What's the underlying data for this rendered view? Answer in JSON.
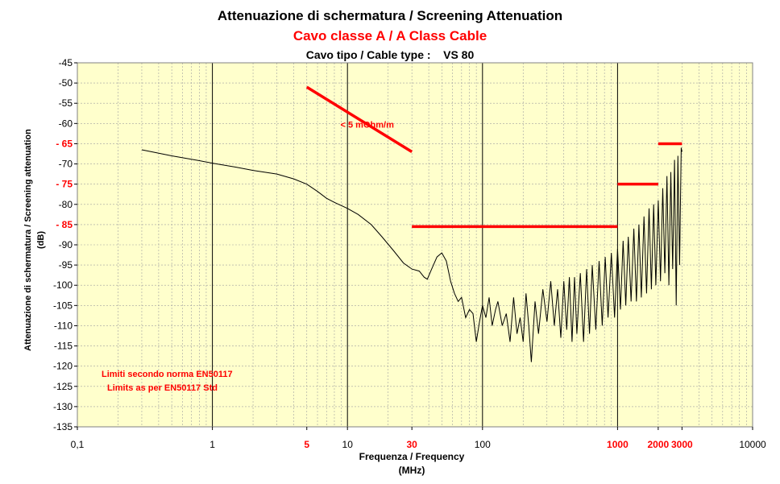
{
  "title": "Attenuazione di schermatura / Screening Attenuation",
  "subtitle": "Cavo classe A / A Class Cable",
  "cable_type_label": "Cavo tipo / Cable type :",
  "cable_type_value": "VS 80",
  "colors": {
    "plot_bg": "#ffffcc",
    "limit": "#ff0000",
    "series": "#000000",
    "grid": "#808080"
  },
  "chart_data": {
    "type": "line",
    "x_scale": "log",
    "xlim": [
      0.1,
      10000
    ],
    "ylim": [
      -135,
      -45
    ],
    "xlabel_line1": "Frequenza / Frequency",
    "xlabel_line2": "(MHz)",
    "ylabel_line1": "Attenuazione di schermatura / Screening attenuation",
    "ylabel_line2": "(dB)",
    "x_ticks": [
      {
        "value": 0.1,
        "label": "0,1",
        "highlight": false
      },
      {
        "value": 1,
        "label": "1",
        "highlight": false
      },
      {
        "value": 5,
        "label": "5",
        "highlight": true
      },
      {
        "value": 10,
        "label": "10",
        "highlight": false
      },
      {
        "value": 30,
        "label": "30",
        "highlight": true
      },
      {
        "value": 100,
        "label": "100",
        "highlight": false
      },
      {
        "value": 1000,
        "label": "1000",
        "highlight": true
      },
      {
        "value": 2000,
        "label": "2000",
        "highlight": true
      },
      {
        "value": 3000,
        "label": "3000",
        "highlight": true
      },
      {
        "value": 10000,
        "label": "10000",
        "highlight": false
      }
    ],
    "y_ticks": [
      {
        "value": -45,
        "label": "-45",
        "highlight": false
      },
      {
        "value": -50,
        "label": "-50",
        "highlight": false
      },
      {
        "value": -55,
        "label": "-55",
        "highlight": false
      },
      {
        "value": -60,
        "label": "-60",
        "highlight": false
      },
      {
        "value": -65,
        "label": "- 65",
        "highlight": true
      },
      {
        "value": -70,
        "label": "-70",
        "highlight": false
      },
      {
        "value": -75,
        "label": "- 75",
        "highlight": true
      },
      {
        "value": -80,
        "label": "-80",
        "highlight": false
      },
      {
        "value": -85,
        "label": "- 85",
        "highlight": true
      },
      {
        "value": -90,
        "label": "-90",
        "highlight": false
      },
      {
        "value": -95,
        "label": "-95",
        "highlight": false
      },
      {
        "value": -100,
        "label": "-100",
        "highlight": false
      },
      {
        "value": -105,
        "label": "-105",
        "highlight": false
      },
      {
        "value": -110,
        "label": "-110",
        "highlight": false
      },
      {
        "value": -115,
        "label": "-115",
        "highlight": false
      },
      {
        "value": -120,
        "label": "-120",
        "highlight": false
      },
      {
        "value": -125,
        "label": "-125",
        "highlight": false
      },
      {
        "value": -130,
        "label": "-130",
        "highlight": false
      },
      {
        "value": -135,
        "label": "-135",
        "highlight": false
      }
    ],
    "series": [
      {
        "points": [
          [
            0.3,
            -66.5
          ],
          [
            0.5,
            -68
          ],
          [
            0.8,
            -69.2
          ],
          [
            1,
            -69.8
          ],
          [
            1.5,
            -70.8
          ],
          [
            2,
            -71.6
          ],
          [
            3,
            -72.5
          ],
          [
            4,
            -73.7
          ],
          [
            5,
            -75
          ],
          [
            6,
            -76.8
          ],
          [
            7,
            -78.5
          ],
          [
            8,
            -79.5
          ],
          [
            10,
            -81
          ],
          [
            12,
            -82.5
          ],
          [
            15,
            -85
          ],
          [
            18,
            -88
          ],
          [
            22,
            -91.5
          ],
          [
            26,
            -94.5
          ],
          [
            30,
            -96
          ],
          [
            34,
            -96.5
          ],
          [
            37,
            -98
          ],
          [
            39,
            -98.5
          ],
          [
            42,
            -96
          ],
          [
            46,
            -93
          ],
          [
            50,
            -92
          ],
          [
            54,
            -94
          ],
          [
            58,
            -99
          ],
          [
            62,
            -102
          ],
          [
            66,
            -104
          ],
          [
            70,
            -103
          ],
          [
            75,
            -108
          ],
          [
            80,
            -106
          ],
          [
            85,
            -107
          ],
          [
            90,
            -114
          ],
          [
            95,
            -109
          ],
          [
            100,
            -105
          ],
          [
            106,
            -108
          ],
          [
            112,
            -103
          ],
          [
            118,
            -110
          ],
          [
            125,
            -106
          ],
          [
            130,
            -104
          ],
          [
            140,
            -110
          ],
          [
            150,
            -107
          ],
          [
            160,
            -114
          ],
          [
            170,
            -103
          ],
          [
            180,
            -112
          ],
          [
            190,
            -108
          ],
          [
            200,
            -114
          ],
          [
            210,
            -102
          ],
          [
            220,
            -110
          ],
          [
            230,
            -119
          ],
          [
            245,
            -104
          ],
          [
            260,
            -112
          ],
          [
            280,
            -101
          ],
          [
            300,
            -109
          ],
          [
            320,
            -99
          ],
          [
            340,
            -110
          ],
          [
            360,
            -101
          ],
          [
            380,
            -113
          ],
          [
            400,
            -99
          ],
          [
            420,
            -111
          ],
          [
            440,
            -98
          ],
          [
            460,
            -114
          ],
          [
            480,
            -98
          ],
          [
            500,
            -112
          ],
          [
            530,
            -97
          ],
          [
            560,
            -114
          ],
          [
            590,
            -96
          ],
          [
            620,
            -112
          ],
          [
            650,
            -95
          ],
          [
            690,
            -111
          ],
          [
            730,
            -94
          ],
          [
            770,
            -110
          ],
          [
            810,
            -93
          ],
          [
            850,
            -108
          ],
          [
            900,
            -92
          ],
          [
            950,
            -108
          ],
          [
            1000,
            -91
          ],
          [
            1050,
            -106
          ],
          [
            1100,
            -89
          ],
          [
            1150,
            -105
          ],
          [
            1200,
            -88
          ],
          [
            1260,
            -104
          ],
          [
            1320,
            -86
          ],
          [
            1380,
            -104
          ],
          [
            1440,
            -85
          ],
          [
            1500,
            -103
          ],
          [
            1570,
            -83
          ],
          [
            1640,
            -102
          ],
          [
            1710,
            -81
          ],
          [
            1780,
            -101
          ],
          [
            1850,
            -80
          ],
          [
            1920,
            -100
          ],
          [
            2000,
            -79
          ],
          [
            2080,
            -99
          ],
          [
            2160,
            -76
          ],
          [
            2240,
            -97
          ],
          [
            2320,
            -73
          ],
          [
            2400,
            -100
          ],
          [
            2480,
            -72
          ],
          [
            2560,
            -96
          ],
          [
            2640,
            -69
          ],
          [
            2720,
            -105
          ],
          [
            2800,
            -68
          ],
          [
            2880,
            -95
          ],
          [
            2960,
            -66
          ],
          [
            3000,
            -67
          ]
        ]
      }
    ],
    "limit_lines": [
      {
        "x": [
          30,
          1000
        ],
        "y": [
          -85.5,
          -85.5
        ]
      },
      {
        "x": [
          1000,
          2000
        ],
        "y": [
          -75,
          -75
        ]
      },
      {
        "x": [
          2000,
          3000
        ],
        "y": [
          -65,
          -65
        ]
      },
      {
        "x": [
          5,
          30
        ],
        "y": [
          -51,
          -67
        ]
      }
    ],
    "annotations": {
      "slope_label": "< 5 mOhm/m",
      "limits_line1": "Limiti secondo norma EN50117",
      "limits_line2": "Limits as per EN50117 Std"
    }
  }
}
